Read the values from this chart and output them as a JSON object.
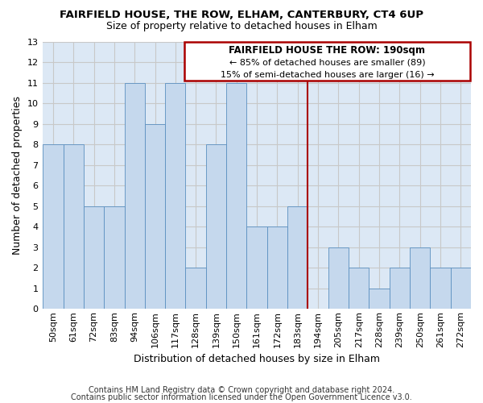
{
  "title": "FAIRFIELD HOUSE, THE ROW, ELHAM, CANTERBURY, CT4 6UP",
  "subtitle": "Size of property relative to detached houses in Elham",
  "xlabel": "Distribution of detached houses by size in Elham",
  "ylabel": "Number of detached properties",
  "bar_labels": [
    "50sqm",
    "61sqm",
    "72sqm",
    "83sqm",
    "94sqm",
    "106sqm",
    "117sqm",
    "128sqm",
    "139sqm",
    "150sqm",
    "161sqm",
    "172sqm",
    "183sqm",
    "194sqm",
    "205sqm",
    "217sqm",
    "228sqm",
    "239sqm",
    "250sqm",
    "261sqm",
    "272sqm"
  ],
  "bar_values": [
    8,
    8,
    5,
    5,
    11,
    9,
    11,
    2,
    8,
    11,
    4,
    4,
    5,
    0,
    3,
    2,
    1,
    2,
    3,
    2,
    2
  ],
  "bar_color": "#c5d8ed",
  "bar_edge_color": "#5a8fc0",
  "bar_edge_width": 0.6,
  "grid_color": "#c8c8c8",
  "bg_color": "#dce8f5",
  "ylim": [
    0,
    13
  ],
  "yticks": [
    0,
    1,
    2,
    3,
    4,
    5,
    6,
    7,
    8,
    9,
    10,
    11,
    12,
    13
  ],
  "annotation_title": "FAIRFIELD HOUSE THE ROW: 190sqm",
  "annotation_line1": "← 85% of detached houses are smaller (89)",
  "annotation_line2": "15% of semi-detached houses are larger (16) →",
  "vline_color": "#aa0000",
  "annotation_box_edge": "#aa0000",
  "footer1": "Contains HM Land Registry data © Crown copyright and database right 2024.",
  "footer2": "Contains public sector information licensed under the Open Government Licence v3.0.",
  "title_fontsize": 9.5,
  "subtitle_fontsize": 9,
  "ylabel_fontsize": 9,
  "xlabel_fontsize": 9,
  "footer_fontsize": 7,
  "tick_fontsize": 8,
  "ann_fontsize": 8.5
}
